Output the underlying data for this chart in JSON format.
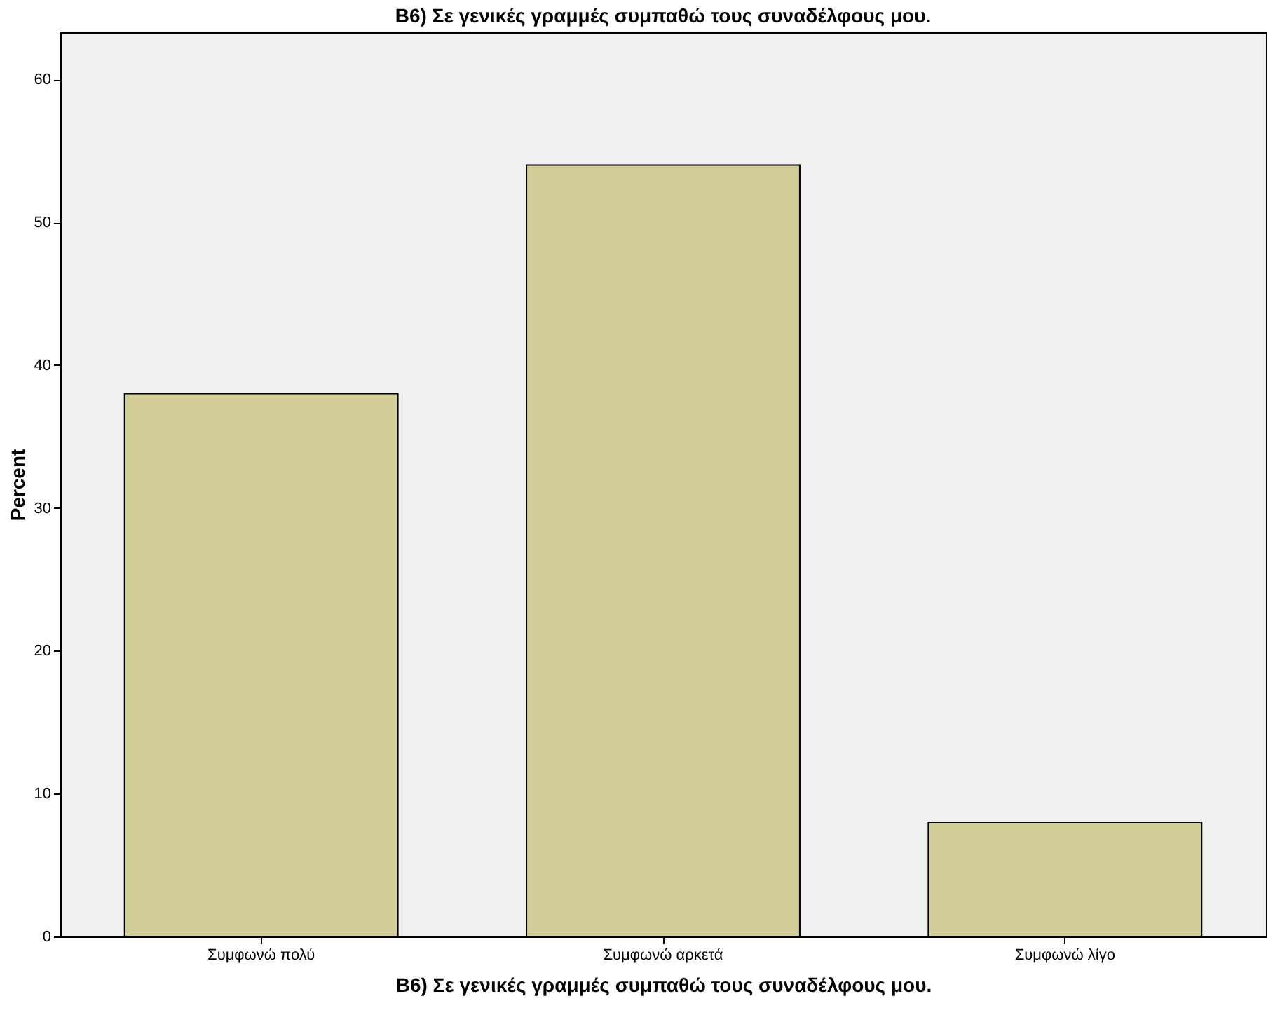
{
  "chart_data": {
    "type": "bar",
    "title": "B6) Σε γενικές γραμμές συμπαθώ τους συναδέλφους μου.",
    "xlabel": "B6) Σε γενικές γραμμές συμπαθώ τους συναδέλφους μου.",
    "ylabel": "Percent",
    "categories": [
      "Συμφωνώ πολύ",
      "Συμφωνώ αρκετά",
      "Συμφωνώ λίγο"
    ],
    "values": [
      38,
      54,
      8
    ],
    "color": "#d3ce97",
    "ylim": [
      0,
      63.3
    ],
    "yticks": [
      0,
      10,
      20,
      30,
      40,
      50,
      60
    ],
    "grid": false
  }
}
